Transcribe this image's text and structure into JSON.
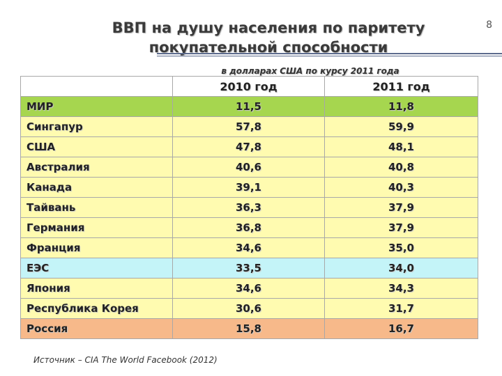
{
  "slide": {
    "title_line1": "ВВП на душу населения по паритету",
    "title_line2": "покупательной способности",
    "number": "8",
    "subtitle": "в долларах США по курсу 2011 года",
    "source": "Источник – CIA The World Facebook (2012)"
  },
  "table": {
    "headers": [
      "",
      "2010 год",
      "2011 год"
    ],
    "rows": [
      {
        "name": "МИР",
        "v2010": "11,5",
        "v2011": "11,8",
        "color": "#a6d64f"
      },
      {
        "name": "Сингапур",
        "v2010": "57,8",
        "v2011": "59,9",
        "color": "#fffbb0"
      },
      {
        "name": "США",
        "v2010": "47,8",
        "v2011": "48,1",
        "color": "#fffbb0"
      },
      {
        "name": "Австралия",
        "v2010": "40,6",
        "v2011": "40,8",
        "color": "#fffbb0"
      },
      {
        "name": "Канада",
        "v2010": "39,1",
        "v2011": "40,3",
        "color": "#fffbb0"
      },
      {
        "name": "Тайвань",
        "v2010": "36,3",
        "v2011": "37,9",
        "color": "#fffbb0"
      },
      {
        "name": "Германия",
        "v2010": "36,8",
        "v2011": "37,9",
        "color": "#fffbb0"
      },
      {
        "name": "Франция",
        "v2010": "34,6",
        "v2011": "35,0",
        "color": "#fffbb0"
      },
      {
        "name": "ЕЭС",
        "v2010": "33,5",
        "v2011": "34,0",
        "color": "#c4f4f8"
      },
      {
        "name": "Япония",
        "v2010": "34,6",
        "v2011": "34,3",
        "color": "#fffbb0"
      },
      {
        "name": "Республика Корея",
        "v2010": "30,6",
        "v2011": "31,7",
        "color": "#fffbb0"
      },
      {
        "name": "Россия",
        "v2010": "15,8",
        "v2011": "16,7",
        "color": "#f7b98a"
      }
    ]
  }
}
